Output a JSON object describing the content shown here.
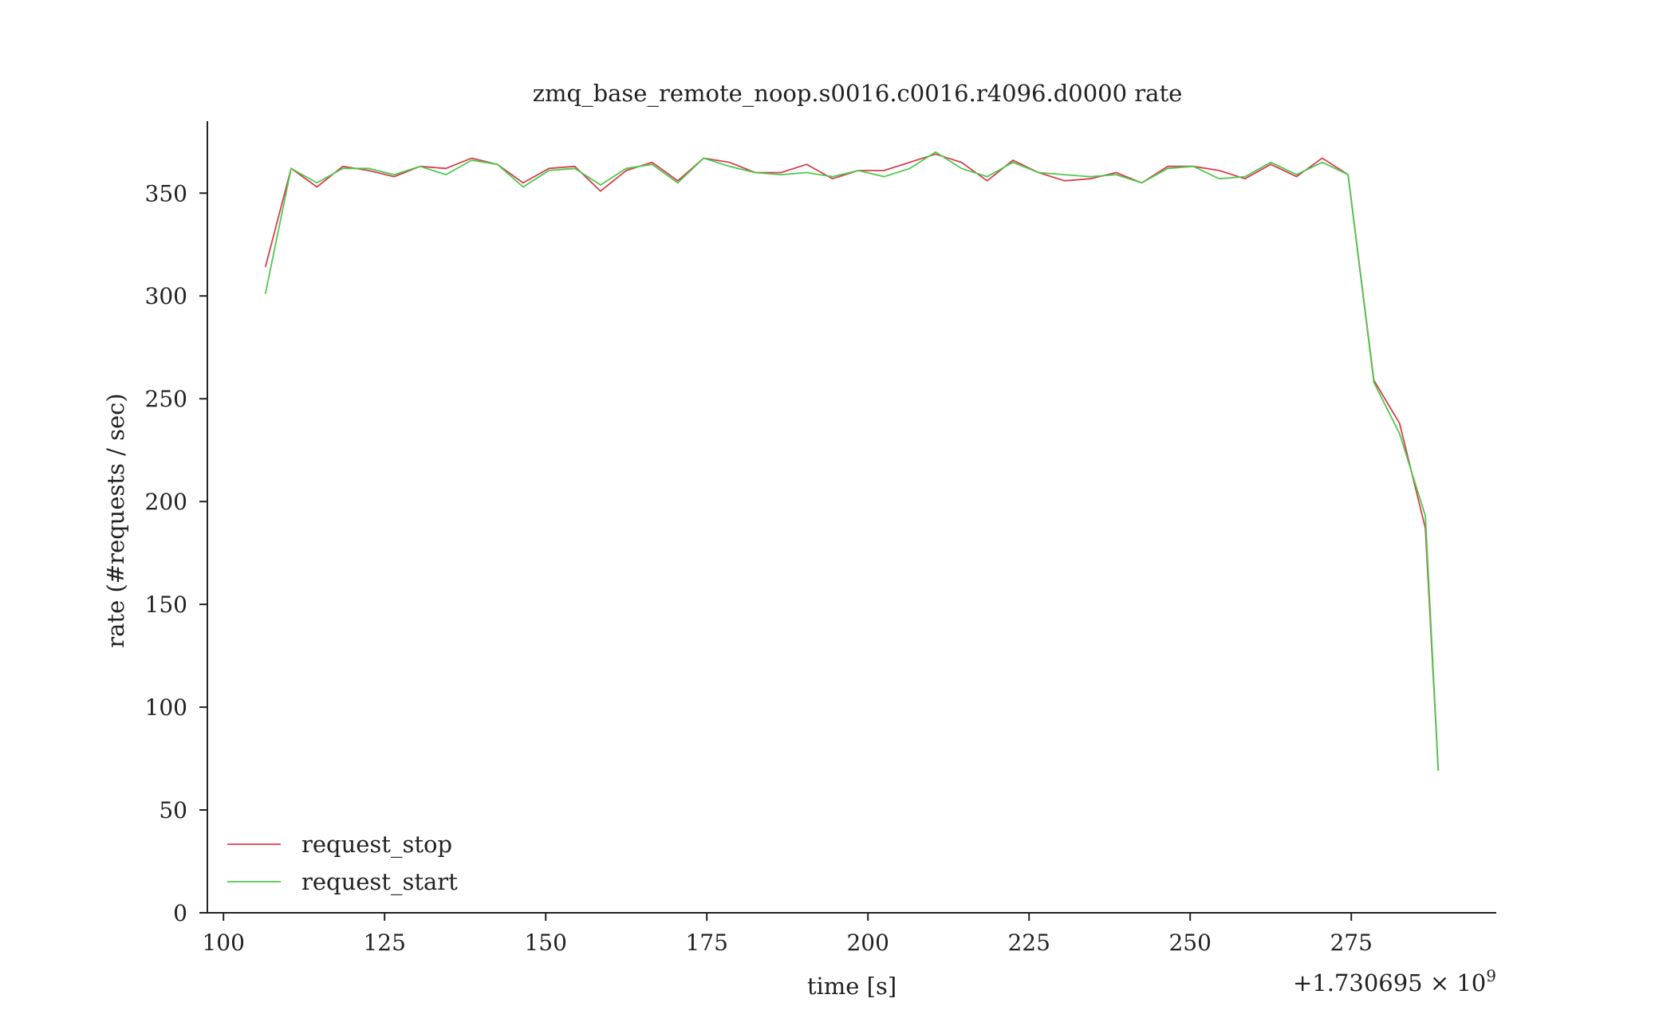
{
  "chart_data": {
    "type": "line",
    "title": "zmq_base_remote_noop.s0016.c0016.r4096.d0000 rate",
    "xlabel": "time [s]",
    "ylabel": "rate (#requests / sec)",
    "x_offset_label": "+1.730695 × 10",
    "x_offset_exponent": "9",
    "xlim": [
      97.5,
      297.5
    ],
    "ylim": [
      0,
      385
    ],
    "xticks": [
      100,
      125,
      150,
      175,
      200,
      225,
      250,
      275
    ],
    "yticks": [
      0,
      50,
      100,
      150,
      200,
      250,
      300,
      350
    ],
    "grid": false,
    "legend_position": "lower-left",
    "x": [
      106.5,
      110.5,
      114.5,
      118.5,
      122.5,
      126.5,
      130.5,
      134.5,
      138.5,
      142.5,
      146.5,
      150.5,
      154.5,
      158.5,
      162.5,
      166.5,
      170.5,
      174.5,
      178.5,
      182.5,
      186.5,
      190.5,
      194.5,
      198.5,
      202.5,
      206.5,
      210.5,
      214.5,
      218.5,
      222.5,
      226.5,
      230.5,
      234.5,
      238.5,
      242.5,
      246.5,
      250.5,
      254.5,
      258.5,
      262.5,
      266.5,
      270.5,
      274.5,
      278.5,
      282.5,
      286.5,
      288.5
    ],
    "series": [
      {
        "name": "request_stop",
        "color": "#d6404e",
        "x": [
          106.5,
          110.5,
          114.5,
          118.5,
          122.5,
          126.5,
          130.5,
          134.5,
          138.5,
          142.5,
          146.5,
          150.5,
          154.5,
          158.5,
          162.5,
          166.5,
          170.5,
          174.5,
          178.5,
          182.5,
          186.5,
          190.5,
          194.5,
          198.5,
          202.5,
          206.5,
          210.5,
          214.5,
          218.5,
          222.5,
          226.5,
          230.5,
          234.5,
          238.5,
          242.5,
          246.5,
          250.5,
          254.5,
          258.5,
          262.5,
          266.5,
          270.5,
          274.5,
          278.5,
          282.5,
          286.5,
          288.5
        ],
        "values": [
          314,
          362,
          353,
          363,
          361,
          358,
          363,
          362,
          367,
          364,
          355,
          362,
          363,
          351,
          361,
          365,
          356,
          367,
          365,
          360,
          360,
          364,
          357,
          361,
          361,
          365,
          369,
          365,
          356,
          366,
          360,
          356,
          357,
          360,
          355,
          363,
          363,
          361,
          357,
          364,
          358,
          367,
          359,
          259,
          238,
          187,
          69
        ]
      },
      {
        "name": "request_start",
        "color": "#4ec94e",
        "x": [
          106.5,
          110.5,
          114.5,
          118.5,
          122.5,
          126.5,
          130.5,
          134.5,
          138.5,
          142.5,
          146.5,
          150.5,
          154.5,
          158.5,
          162.5,
          166.5,
          170.5,
          174.5,
          178.5,
          182.5,
          186.5,
          190.5,
          194.5,
          198.5,
          202.5,
          206.5,
          210.5,
          214.5,
          218.5,
          222.5,
          226.5,
          230.5,
          234.5,
          238.5,
          242.5,
          246.5,
          250.5,
          254.5,
          258.5,
          262.5,
          266.5,
          270.5,
          274.5,
          278.5,
          282.5,
          286.5,
          288.5
        ],
        "values": [
          301,
          362,
          355,
          362,
          362,
          359,
          363,
          359,
          366,
          364,
          353,
          361,
          362,
          354,
          362,
          364,
          355,
          367,
          363,
          360,
          359,
          360,
          358,
          361,
          358,
          362,
          370,
          362,
          358,
          365,
          360,
          359,
          358,
          359,
          355,
          362,
          363,
          357,
          358,
          365,
          359,
          365,
          359,
          258,
          233,
          193,
          69
        ]
      }
    ]
  }
}
